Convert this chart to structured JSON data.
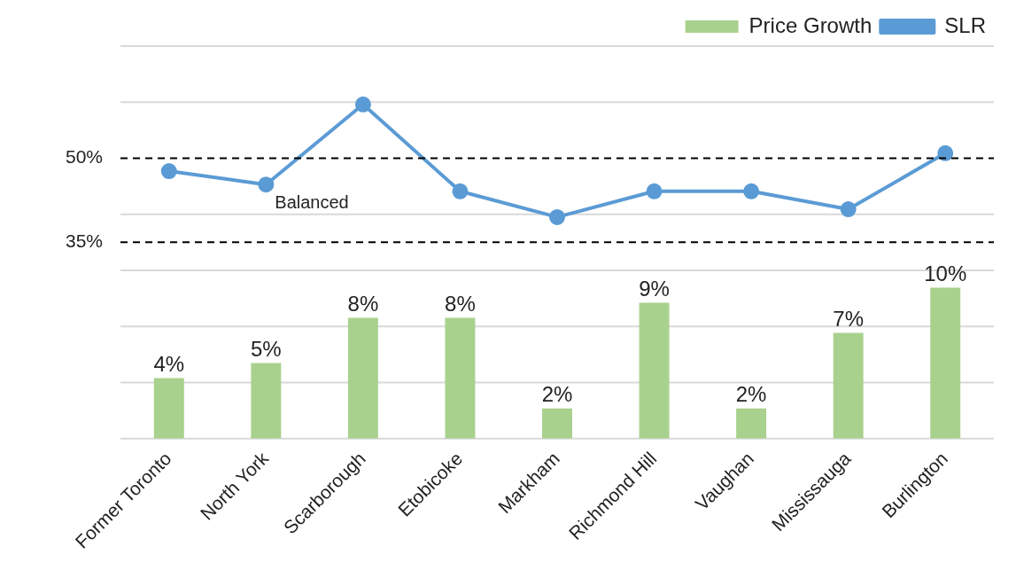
{
  "chart_data": {
    "type": "bar",
    "categories": [
      "Former Toronto",
      "North York",
      "Scarborough",
      "Etobicoke",
      "Markham",
      "Richmond Hill",
      "Vaughan",
      "Mississauga",
      "Burlington"
    ],
    "series": [
      {
        "name": "Price Growth",
        "axis": "y2",
        "color": "#a9d18e",
        "values": [
          4,
          5,
          8,
          8,
          2,
          9,
          2,
          7,
          10
        ],
        "value_labels": [
          "4%",
          "5%",
          "8%",
          "8%",
          "2%",
          "9%",
          "2%",
          "7%",
          "10%"
        ]
      },
      {
        "name": "SLR",
        "type": "line",
        "color": "#5b9bd5",
        "marker": "circle",
        "values": [
          47.7,
          45.3,
          59.6,
          44.1,
          39.5,
          44.1,
          44.1,
          40.9,
          50.9
        ]
      }
    ],
    "ylim": [
      0,
      70
    ],
    "yticks": [
      {
        "value": 0,
        "label": null
      },
      {
        "value": 10,
        "label": null
      },
      {
        "value": 20,
        "label": null
      },
      {
        "value": 30,
        "label": null
      },
      {
        "value": 40,
        "label": null
      },
      {
        "value": 50,
        "label": null
      },
      {
        "value": 60,
        "label": null
      },
      {
        "value": 70,
        "label": null
      }
    ],
    "y2lim": [
      0,
      26
    ],
    "ref_lines": [
      {
        "axis": "y",
        "value": 50,
        "label": "50%",
        "color": "#000000",
        "line_style": "dashed"
      },
      {
        "axis": "y",
        "value": 35,
        "label": "35%",
        "color": "#000000",
        "line_style": "dashed"
      }
    ],
    "annotations": [
      "Balanced"
    ],
    "grid": "y",
    "legend": "top right"
  }
}
